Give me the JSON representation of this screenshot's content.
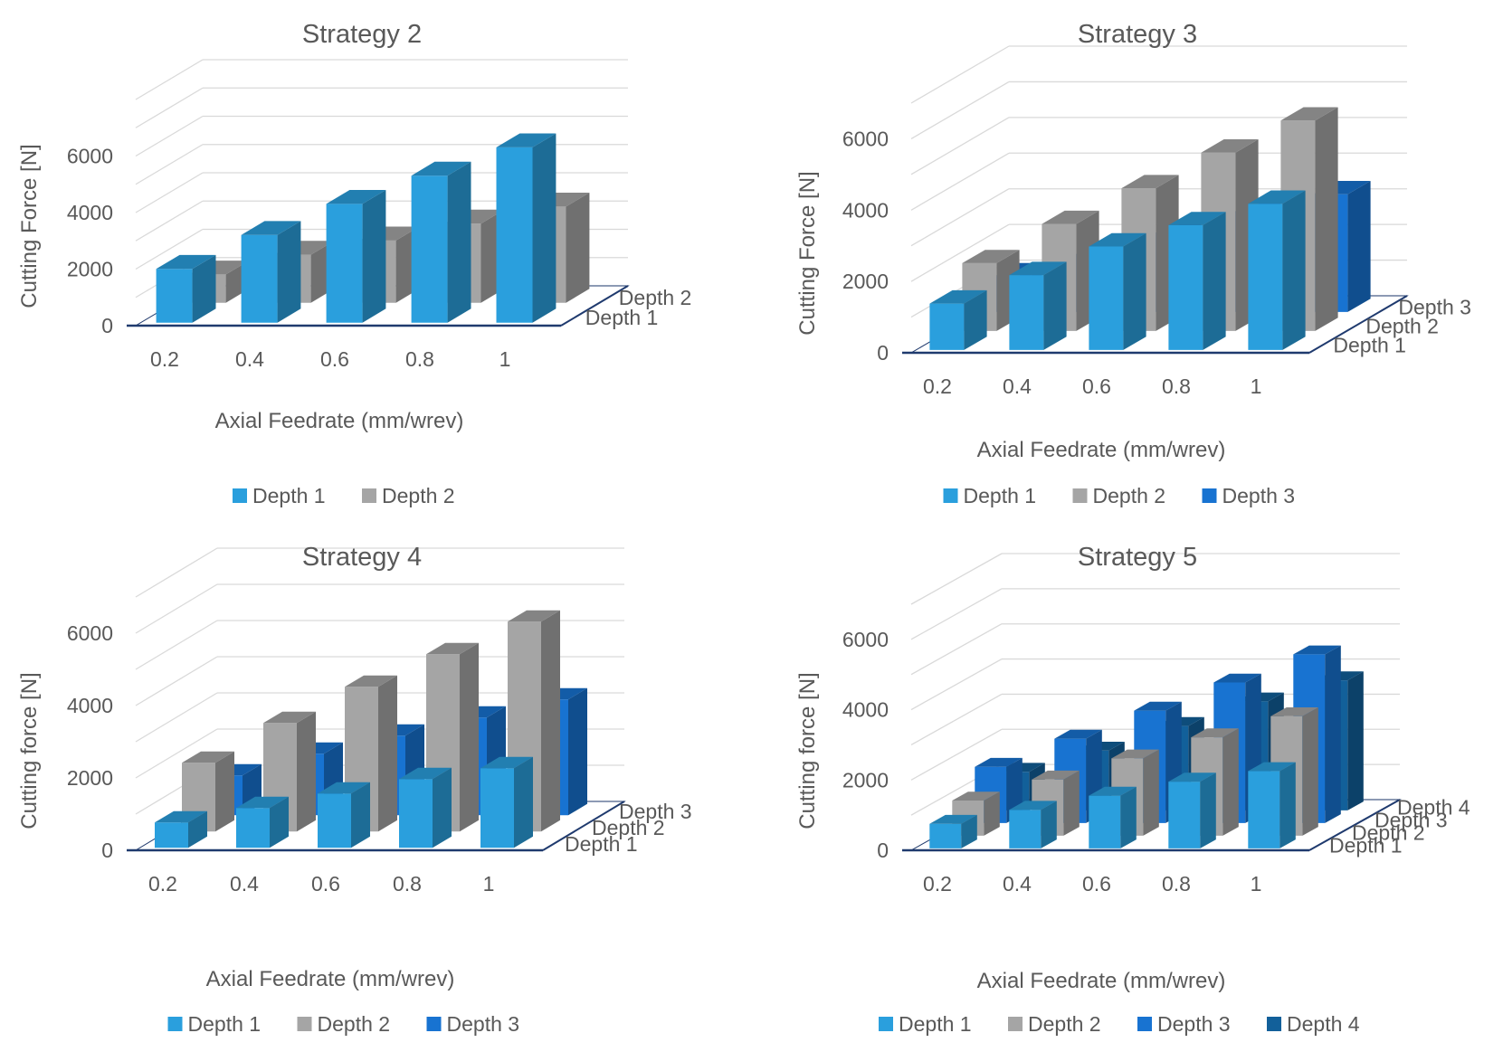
{
  "colors": {
    "depth1": "#2A9FDD",
    "depth2": "#A5A5A5",
    "depth3": "#1873D1",
    "depth4": "#12609A",
    "axis": "#1F3A6E",
    "grid": "#D9D9D9",
    "text": "#595959"
  },
  "chart_data": [
    {
      "type": "bar",
      "style": "3d-column",
      "title": "Strategy 2",
      "xlabel": "Axial Feedrate (mm/wrev)",
      "ylabel": "Cutting Force [N]",
      "categories": [
        "0.2",
        "0.4",
        "0.6",
        "0.8",
        "1"
      ],
      "yticks": [
        "0",
        "2000",
        "4000",
        "6000"
      ],
      "ylim": [
        0,
        8000
      ],
      "series": [
        {
          "name": "Depth 1",
          "values": [
            1900,
            3100,
            4200,
            5200,
            6200
          ]
        },
        {
          "name": "Depth 2",
          "values": [
            1000,
            1700,
            2200,
            2800,
            3400
          ]
        }
      ]
    },
    {
      "type": "bar",
      "style": "3d-column",
      "title": "Strategy 3",
      "xlabel": "Axial Feedrate (mm/wrev)",
      "ylabel": "Cutting Force [N]",
      "categories": [
        "0.2",
        "0.4",
        "0.6",
        "0.8",
        "1"
      ],
      "yticks": [
        "0",
        "2000",
        "4000",
        "6000"
      ],
      "ylim": [
        0,
        7000
      ],
      "series": [
        {
          "name": "Depth 1",
          "values": [
            1300,
            2100,
            2900,
            3500,
            4100
          ]
        },
        {
          "name": "Depth 2",
          "values": [
            1900,
            3000,
            4000,
            5000,
            5900
          ]
        },
        {
          "name": "Depth 3",
          "values": [
            1000,
            1600,
            2200,
            2800,
            3300
          ]
        }
      ]
    },
    {
      "type": "bar",
      "style": "3d-column",
      "title": "Strategy 4",
      "xlabel": "Axial Feedrate (mm/wrev)",
      "ylabel": "Cutting force [N]",
      "categories": [
        "0.2",
        "0.4",
        "0.6",
        "0.8",
        "1"
      ],
      "yticks": [
        "0",
        "2000",
        "4000",
        "6000"
      ],
      "ylim": [
        0,
        7000
      ],
      "series": [
        {
          "name": "Depth 1",
          "values": [
            700,
            1100,
            1500,
            1900,
            2200
          ]
        },
        {
          "name": "Depth 2",
          "values": [
            1900,
            3000,
            4000,
            4900,
            5800
          ]
        },
        {
          "name": "Depth 3",
          "values": [
            1100,
            1700,
            2200,
            2700,
            3200
          ]
        }
      ]
    },
    {
      "type": "bar",
      "style": "3d-column",
      "title": "Strategy 5",
      "xlabel": "Axial Feedrate (mm/wrev)",
      "ylabel": "Cutting force [N]",
      "categories": [
        "0.2",
        "0.4",
        "0.6",
        "0.8",
        "1"
      ],
      "yticks": [
        "0",
        "2000",
        "4000",
        "6000"
      ],
      "ylim": [
        0,
        7000
      ],
      "series": [
        {
          "name": "Depth 1",
          "values": [
            700,
            1100,
            1500,
            1900,
            2200
          ]
        },
        {
          "name": "Depth 2",
          "values": [
            1000,
            1600,
            2200,
            2800,
            3400
          ]
        },
        {
          "name": "Depth 3",
          "values": [
            1600,
            2400,
            3200,
            4000,
            4800
          ]
        },
        {
          "name": "Depth 4",
          "values": [
            1100,
            1700,
            2400,
            3100,
            3700
          ]
        }
      ]
    }
  ]
}
